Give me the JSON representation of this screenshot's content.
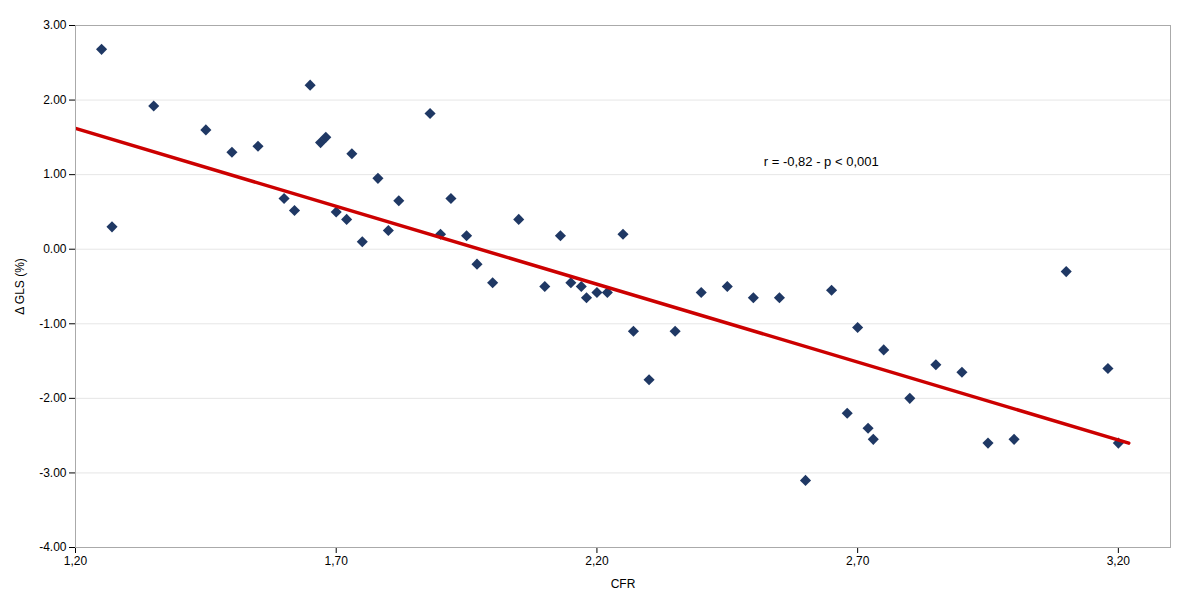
{
  "chart_data": {
    "type": "scatter",
    "xlabel": "CFR",
    "ylabel": "Δ GLS (%)",
    "series": [
      {
        "type": "scatter",
        "color": "#1F3864",
        "marker": "diamond",
        "x": [
          1.25,
          1.27,
          1.35,
          1.45,
          1.5,
          1.55,
          1.6,
          1.62,
          1.65,
          1.67,
          1.68,
          1.7,
          1.72,
          1.73,
          1.75,
          1.78,
          1.8,
          1.82,
          1.88,
          1.9,
          1.92,
          1.95,
          1.97,
          2.0,
          2.05,
          2.1,
          2.13,
          2.15,
          2.17,
          2.18,
          2.2,
          2.22,
          2.25,
          2.27,
          2.3,
          2.35,
          2.4,
          2.45,
          2.5,
          2.55,
          2.6,
          2.65,
          2.68,
          2.7,
          2.72,
          2.73,
          2.75,
          2.8,
          2.85,
          2.9,
          2.95,
          3.0,
          3.1,
          3.18,
          3.2
        ],
        "values": [
          2.68,
          0.3,
          1.92,
          1.6,
          1.3,
          1.38,
          0.68,
          0.52,
          2.2,
          1.43,
          1.5,
          0.5,
          0.4,
          1.28,
          0.1,
          0.95,
          0.25,
          0.65,
          1.82,
          0.2,
          0.68,
          0.18,
          -0.2,
          -0.45,
          0.4,
          -0.5,
          0.18,
          -0.45,
          -0.5,
          -0.65,
          -0.58,
          -0.58,
          0.2,
          -1.1,
          -1.75,
          -1.1,
          -0.58,
          -0.5,
          -0.65,
          -0.65,
          -3.1,
          -0.55,
          -2.2,
          -1.05,
          -2.4,
          -2.55,
          -1.35,
          -2.0,
          -1.55,
          -1.65,
          -2.6,
          -2.55,
          -0.3,
          -1.6,
          -2.6
        ]
      },
      {
        "type": "line",
        "color": "#CC0000",
        "line_style": "solid",
        "x": [
          1.2,
          3.22
        ],
        "values": [
          1.62,
          -2.6
        ]
      }
    ],
    "annotations": [
      {
        "text": "r = -0,82 - p < 0,001",
        "x": 2.52,
        "y": 1.12
      }
    ],
    "xlim": [
      1.2,
      3.3
    ],
    "ylim": [
      -4.0,
      3.0
    ],
    "xticks": [
      {
        "value": 1.2,
        "label": "1,20"
      },
      {
        "value": 1.7,
        "label": "1,70"
      },
      {
        "value": 2.2,
        "label": "2,20"
      },
      {
        "value": 2.7,
        "label": "2,70"
      },
      {
        "value": 3.2,
        "label": "3,20"
      }
    ],
    "yticks": [
      {
        "value": -4.0,
        "label": "-4.00"
      },
      {
        "value": -3.0,
        "label": "-3.00"
      },
      {
        "value": -2.0,
        "label": "-2.00"
      },
      {
        "value": -1.0,
        "label": "-1.00"
      },
      {
        "value": 0.0,
        "label": "0.00"
      },
      {
        "value": 1.0,
        "label": "1.00"
      },
      {
        "value": 2.0,
        "label": "2.00"
      },
      {
        "value": 3.0,
        "label": "3.00"
      }
    ],
    "grid": "y"
  }
}
